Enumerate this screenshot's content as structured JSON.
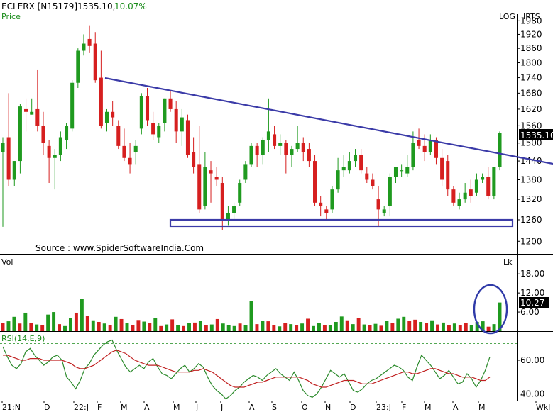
{
  "header": {
    "symbol": "ECLERX [N15179]",
    "price": "1535.10,",
    "change": "10.07%",
    "sub": "Price",
    "log": "LOG",
    "irts": "IRTS"
  },
  "colors": {
    "up": "#1f9a1f",
    "down": "#d61f1f",
    "trendline": "#3b3ba8",
    "rsi_line": "#2b8a2b",
    "rsi_avg": "#c02020",
    "text_header_price": "#000000",
    "text_header_change": "#1a8c1a",
    "badge_bg": "#000000",
    "badge_fg": "#ffffff"
  },
  "watermark": "Source : www.SpiderSoftwareIndia.Com",
  "price_badge": "1535.10",
  "vol_badge": "10.27",
  "chart_data": [
    {
      "type": "candlestick",
      "scale": "log",
      "ylim": [
        1170,
        2010
      ],
      "y_ticks": [
        1980,
        1920,
        1860,
        1800,
        1740,
        1680,
        1620,
        1560,
        1500,
        1440,
        1380,
        1320,
        1260,
        1200
      ],
      "x_labels": [
        "21:N",
        "D",
        "22:J",
        "F",
        "M",
        "A",
        "M",
        "J",
        "J",
        "A",
        "S",
        "O",
        "N",
        "D",
        "23:J",
        "F",
        "M",
        "A",
        "M",
        "Wkl"
      ],
      "candles": [
        [
          1470,
          1520,
          1240,
          1500
        ],
        [
          1520,
          1680,
          1360,
          1380
        ],
        [
          1380,
          1440,
          1360,
          1440
        ],
        [
          1440,
          1640,
          1400,
          1630
        ],
        [
          1620,
          1660,
          1540,
          1610
        ],
        [
          1600,
          1660,
          1600,
          1610
        ],
        [
          1620,
          1770,
          1540,
          1560
        ],
        [
          1560,
          1610,
          1460,
          1500
        ],
        [
          1490,
          1510,
          1370,
          1450
        ],
        [
          1450,
          1480,
          1350,
          1460
        ],
        [
          1460,
          1540,
          1440,
          1520
        ],
        [
          1510,
          1570,
          1480,
          1560
        ],
        [
          1550,
          1730,
          1540,
          1720
        ],
        [
          1720,
          1860,
          1700,
          1850
        ],
        [
          1850,
          1920,
          1830,
          1880
        ],
        [
          1900,
          1960,
          1840,
          1870
        ],
        [
          1880,
          1930,
          1720,
          1730
        ],
        [
          1740,
          1850,
          1550,
          1560
        ],
        [
          1570,
          1620,
          1540,
          1610
        ],
        [
          1610,
          1650,
          1560,
          1590
        ],
        [
          1560,
          1580,
          1480,
          1490
        ],
        [
          1490,
          1550,
          1440,
          1450
        ],
        [
          1450,
          1500,
          1400,
          1430
        ],
        [
          1470,
          1510,
          1430,
          1490
        ],
        [
          1550,
          1680,
          1530,
          1670
        ],
        [
          1670,
          1700,
          1560,
          1580
        ],
        [
          1570,
          1610,
          1510,
          1530
        ],
        [
          1520,
          1570,
          1500,
          1560
        ],
        [
          1570,
          1660,
          1540,
          1660
        ],
        [
          1660,
          1690,
          1610,
          1620
        ],
        [
          1620,
          1650,
          1500,
          1540
        ],
        [
          1540,
          1620,
          1490,
          1590
        ],
        [
          1580,
          1600,
          1450,
          1460
        ],
        [
          1470,
          1520,
          1400,
          1420
        ],
        [
          1430,
          1560,
          1280,
          1290
        ],
        [
          1300,
          1470,
          1290,
          1420
        ],
        [
          1410,
          1440,
          1310,
          1400
        ],
        [
          1390,
          1420,
          1360,
          1380
        ],
        [
          1370,
          1390,
          1230,
          1260
        ],
        [
          1260,
          1300,
          1245,
          1280
        ],
        [
          1280,
          1310,
          1260,
          1300
        ],
        [
          1310,
          1380,
          1300,
          1370
        ],
        [
          1380,
          1440,
          1370,
          1430
        ],
        [
          1430,
          1500,
          1420,
          1490
        ],
        [
          1490,
          1500,
          1420,
          1460
        ],
        [
          1460,
          1520,
          1430,
          1510
        ],
        [
          1510,
          1660,
          1470,
          1540
        ],
        [
          1530,
          1560,
          1480,
          1490
        ],
        [
          1490,
          1530,
          1460,
          1500
        ],
        [
          1500,
          1510,
          1400,
          1460
        ],
        [
          1460,
          1490,
          1420,
          1480
        ],
        [
          1480,
          1560,
          1470,
          1500
        ],
        [
          1500,
          1520,
          1440,
          1470
        ],
        [
          1480,
          1500,
          1420,
          1440
        ],
        [
          1440,
          1460,
          1300,
          1310
        ],
        [
          1310,
          1330,
          1270,
          1300
        ],
        [
          1290,
          1300,
          1260,
          1280
        ],
        [
          1290,
          1360,
          1280,
          1350
        ],
        [
          1350,
          1450,
          1340,
          1410
        ],
        [
          1410,
          1460,
          1390,
          1420
        ],
        [
          1410,
          1470,
          1400,
          1440
        ],
        [
          1440,
          1480,
          1420,
          1460
        ],
        [
          1460,
          1480,
          1400,
          1410
        ],
        [
          1400,
          1420,
          1370,
          1380
        ],
        [
          1380,
          1400,
          1350,
          1360
        ],
        [
          1320,
          1360,
          1240,
          1290
        ],
        [
          1280,
          1300,
          1270,
          1290
        ],
        [
          1300,
          1400,
          1270,
          1390
        ],
        [
          1390,
          1420,
          1370,
          1420
        ],
        [
          1410,
          1430,
          1390,
          1410
        ],
        [
          1400,
          1460,
          1390,
          1420
        ],
        [
          1420,
          1540,
          1410,
          1500
        ],
        [
          1510,
          1550,
          1480,
          1490
        ],
        [
          1490,
          1530,
          1440,
          1470
        ],
        [
          1470,
          1530,
          1460,
          1510
        ],
        [
          1510,
          1520,
          1430,
          1450
        ],
        [
          1450,
          1480,
          1360,
          1380
        ],
        [
          1440,
          1460,
          1330,
          1350
        ],
        [
          1350,
          1360,
          1300,
          1310
        ],
        [
          1300,
          1340,
          1290,
          1320
        ],
        [
          1320,
          1370,
          1310,
          1340
        ],
        [
          1350,
          1380,
          1310,
          1330
        ],
        [
          1340,
          1400,
          1330,
          1380
        ],
        [
          1380,
          1400,
          1370,
          1390
        ],
        [
          1390,
          1420,
          1320,
          1330
        ],
        [
          1330,
          1420,
          1320,
          1420
        ],
        [
          1420,
          1540,
          1410,
          1535
        ]
      ]
    },
    {
      "type": "bar",
      "title": "Vol",
      "unit": "Lk",
      "ylim": [
        0,
        20.5
      ],
      "y_ticks": [
        18,
        12,
        6
      ],
      "values": [
        [
          2.5,
          "down"
        ],
        [
          3.1,
          "up"
        ],
        [
          4.5,
          "up"
        ],
        [
          2.4,
          "down"
        ],
        [
          5.8,
          "up"
        ],
        [
          2.6,
          "down"
        ],
        [
          2.1,
          "up"
        ],
        [
          1.8,
          "down"
        ],
        [
          5.2,
          "up"
        ],
        [
          6.0,
          "up"
        ],
        [
          2.2,
          "down"
        ],
        [
          1.6,
          "up"
        ],
        [
          4.2,
          "up"
        ],
        [
          5.8,
          "down"
        ],
        [
          10.2,
          "up"
        ],
        [
          4.8,
          "down"
        ],
        [
          3.4,
          "up"
        ],
        [
          2.9,
          "down"
        ],
        [
          2.4,
          "up"
        ],
        [
          1.8,
          "down"
        ],
        [
          4.5,
          "up"
        ],
        [
          3.8,
          "down"
        ],
        [
          2.6,
          "up"
        ],
        [
          1.9,
          "down"
        ],
        [
          3.5,
          "down"
        ],
        [
          3.0,
          "up"
        ],
        [
          2.5,
          "down"
        ],
        [
          4.1,
          "up"
        ],
        [
          1.6,
          "down"
        ],
        [
          2.1,
          "up"
        ],
        [
          3.7,
          "down"
        ],
        [
          2.0,
          "up"
        ],
        [
          1.6,
          "down"
        ],
        [
          2.5,
          "up"
        ],
        [
          2.7,
          "down"
        ],
        [
          3.2,
          "up"
        ],
        [
          1.8,
          "down"
        ],
        [
          2.1,
          "up"
        ],
        [
          3.8,
          "down"
        ],
        [
          2.4,
          "up"
        ],
        [
          2.0,
          "up"
        ],
        [
          1.6,
          "up"
        ],
        [
          2.4,
          "down"
        ],
        [
          1.9,
          "up"
        ],
        [
          9.4,
          "up"
        ],
        [
          2.2,
          "down"
        ],
        [
          3.3,
          "up"
        ],
        [
          3.1,
          "down"
        ],
        [
          2.0,
          "down"
        ],
        [
          1.5,
          "up"
        ],
        [
          2.6,
          "down"
        ],
        [
          2.2,
          "up"
        ],
        [
          1.8,
          "down"
        ],
        [
          2.4,
          "up"
        ],
        [
          3.9,
          "down"
        ],
        [
          1.6,
          "up"
        ],
        [
          2.5,
          "up"
        ],
        [
          1.8,
          "down"
        ],
        [
          2.0,
          "up"
        ],
        [
          2.9,
          "up"
        ],
        [
          4.6,
          "up"
        ],
        [
          3.4,
          "down"
        ],
        [
          2.2,
          "up"
        ],
        [
          4.1,
          "down"
        ],
        [
          2.1,
          "up"
        ],
        [
          1.9,
          "down"
        ],
        [
          2.3,
          "up"
        ],
        [
          1.7,
          "down"
        ],
        [
          3.2,
          "up"
        ],
        [
          2.6,
          "down"
        ],
        [
          3.9,
          "up"
        ],
        [
          4.5,
          "up"
        ],
        [
          3.3,
          "down"
        ],
        [
          3.6,
          "down"
        ],
        [
          2.9,
          "up"
        ],
        [
          2.5,
          "down"
        ],
        [
          3.4,
          "up"
        ],
        [
          2.1,
          "down"
        ],
        [
          2.7,
          "up"
        ],
        [
          1.8,
          "down"
        ],
        [
          2.4,
          "up"
        ],
        [
          2.0,
          "down"
        ],
        [
          2.5,
          "down"
        ],
        [
          1.9,
          "up"
        ],
        [
          2.9,
          "up"
        ],
        [
          3.1,
          "up"
        ],
        [
          1.4,
          "down"
        ],
        [
          2.2,
          "up"
        ],
        [
          9.0,
          "up"
        ]
      ]
    },
    {
      "type": "line",
      "title": "RSI(14,E,9)",
      "ylim": [
        36,
        76
      ],
      "y_ticks": [
        60,
        40
      ],
      "reference": 70,
      "series": [
        {
          "color": "rsi_line",
          "values": [
            68,
            62,
            57,
            55,
            58,
            65,
            67,
            63,
            60,
            57,
            59,
            62,
            63,
            60,
            50,
            47,
            43,
            48,
            55,
            58,
            63,
            66,
            69,
            71,
            72,
            66,
            61,
            56,
            53,
            55,
            57,
            55,
            59,
            61,
            56,
            52,
            51,
            49,
            52,
            55,
            57,
            53,
            55,
            58,
            56,
            50,
            45,
            42,
            40,
            37,
            39,
            42,
            44,
            47,
            49,
            51,
            50,
            48,
            51,
            53,
            55,
            52,
            50,
            48,
            53,
            48,
            42,
            39,
            38,
            40,
            44,
            49,
            54,
            52,
            50,
            52,
            47,
            42,
            41,
            43,
            46,
            48,
            49,
            51,
            53,
            55,
            57,
            56,
            54,
            50,
            48,
            56,
            63,
            60,
            57,
            53,
            49,
            51,
            54,
            50,
            46,
            47,
            52,
            49,
            44,
            48,
            54,
            62
          ]
        },
        {
          "color": "rsi_avg",
          "values": [
            63,
            63,
            62,
            61,
            60,
            60,
            61,
            61,
            61,
            60,
            60,
            60,
            60,
            60,
            59,
            58,
            56,
            55,
            55,
            56,
            57,
            59,
            61,
            63,
            65,
            66,
            65,
            64,
            62,
            60,
            59,
            58,
            57,
            57,
            57,
            56,
            55,
            54,
            53,
            53,
            53,
            53,
            54,
            54,
            55,
            54,
            53,
            51,
            49,
            47,
            45,
            44,
            44,
            44,
            45,
            46,
            47,
            47,
            48,
            49,
            50,
            50,
            50,
            50,
            50,
            50,
            49,
            48,
            46,
            45,
            44,
            44,
            45,
            46,
            47,
            48,
            48,
            48,
            47,
            46,
            46,
            46,
            47,
            48,
            49,
            50,
            51,
            52,
            53,
            53,
            52,
            52,
            53,
            54,
            55,
            55,
            54,
            53,
            52,
            52,
            51,
            50,
            50,
            50,
            49,
            48,
            48,
            50
          ]
        }
      ]
    }
  ]
}
